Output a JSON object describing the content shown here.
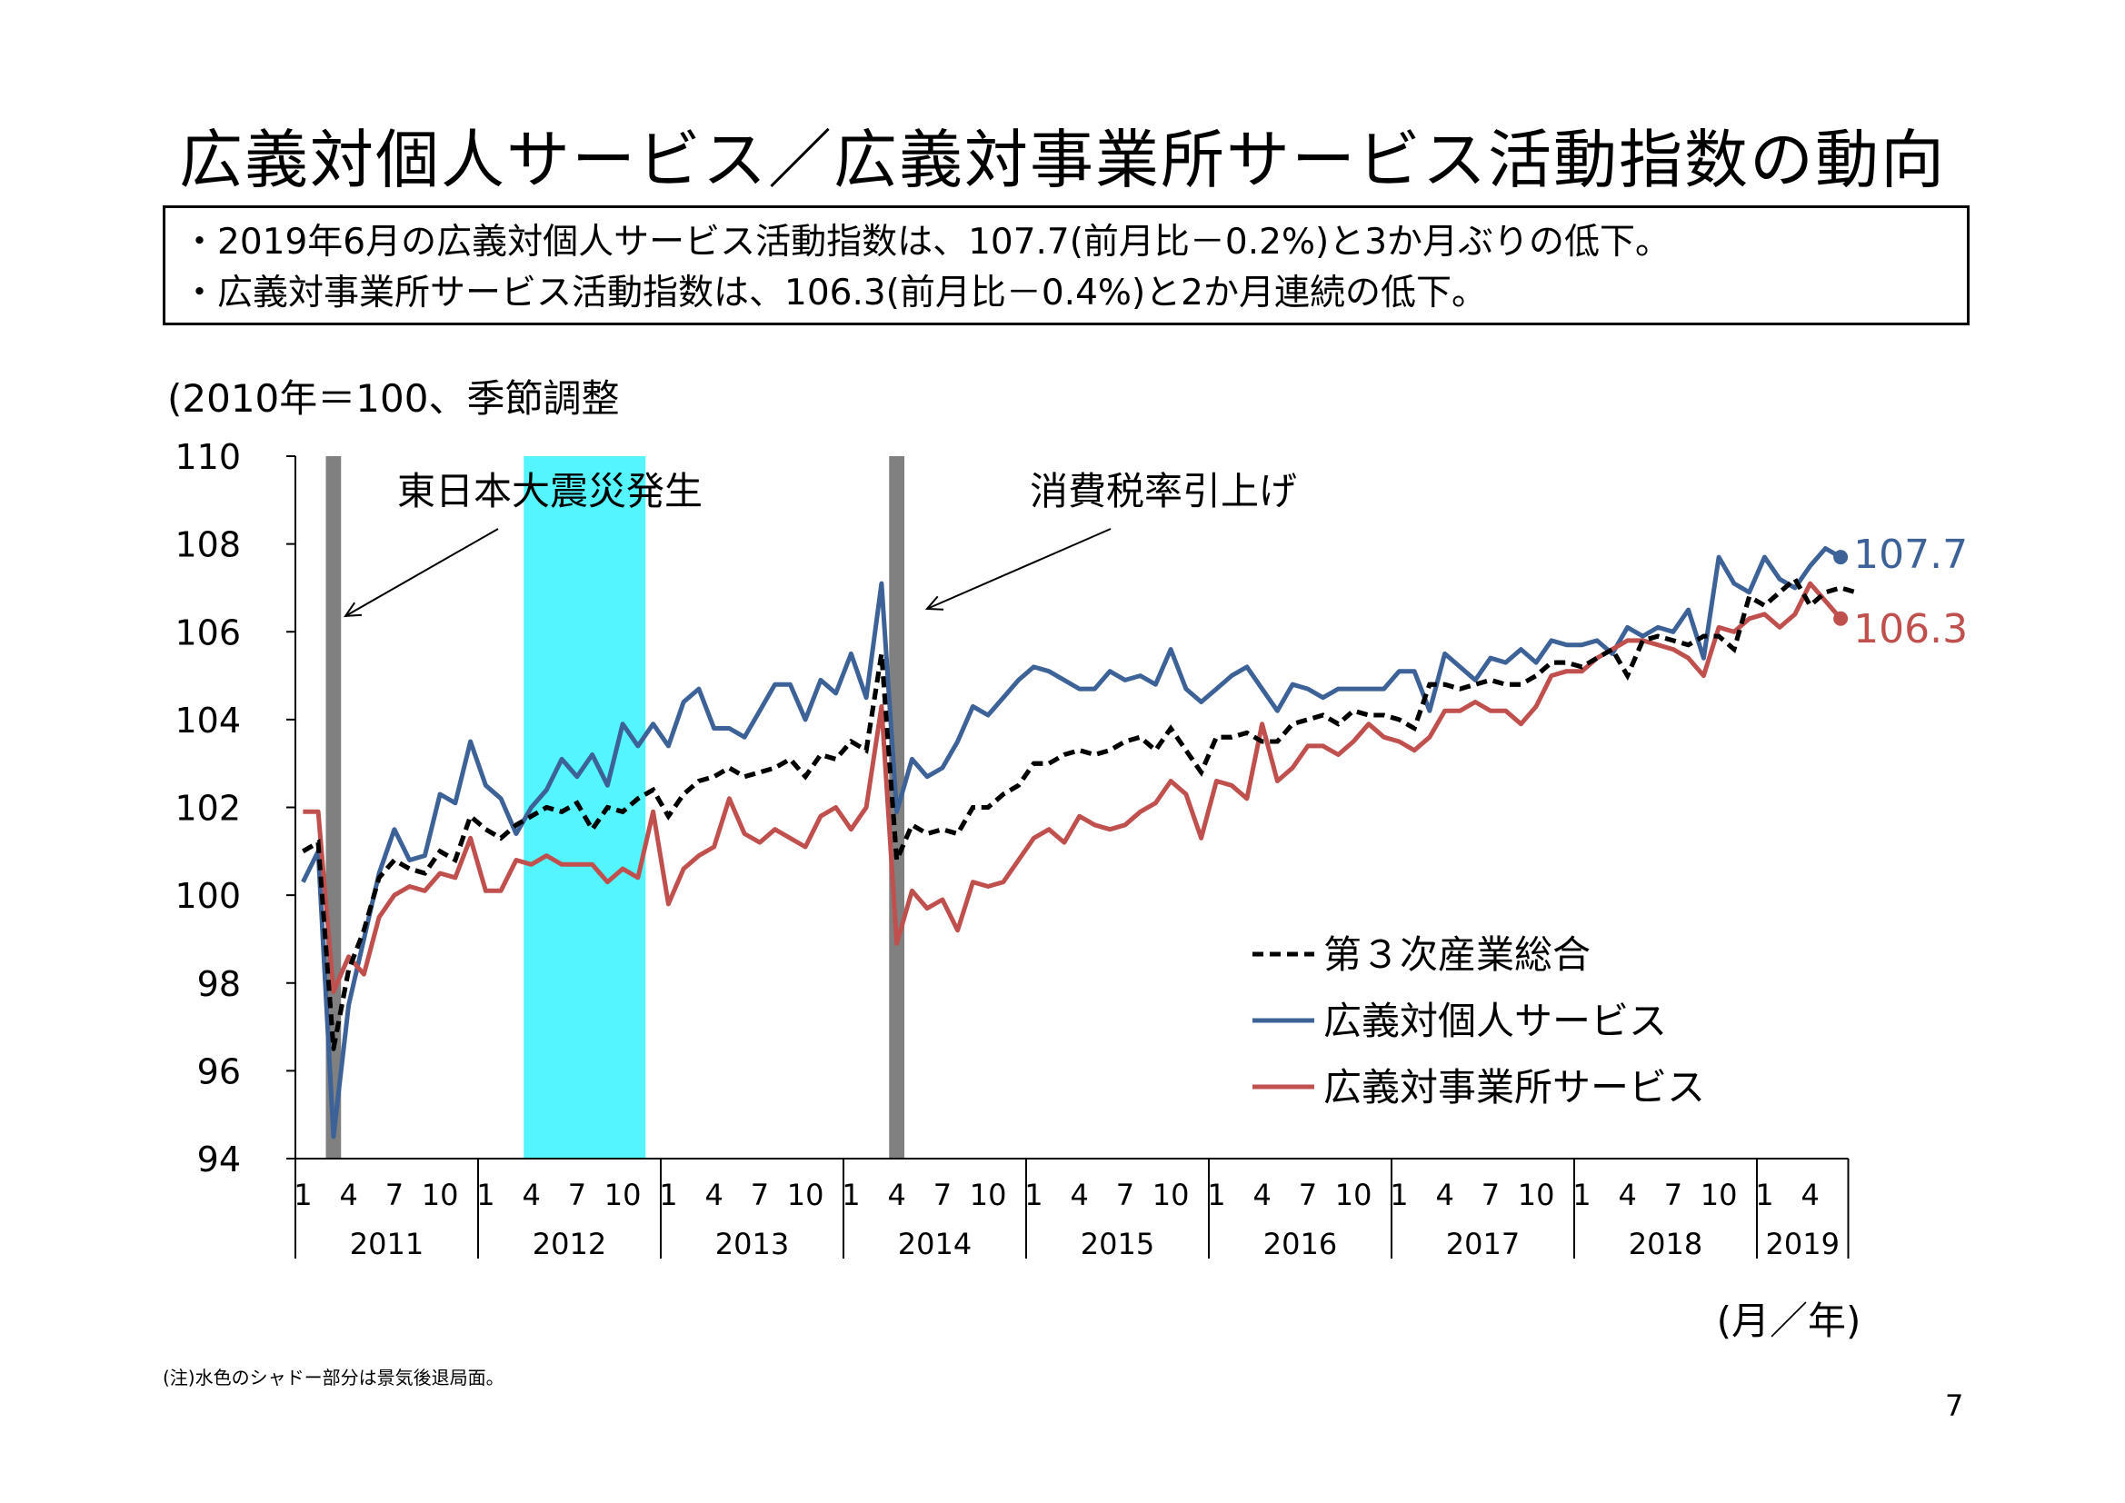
{
  "title": "広義対個人サービス／広義対事業所サービス活動指数の動向",
  "summary": [
    "・2019年6月の広義対個人サービス活動指数は、107.7(前月比－0.2%)と3か月ぶりの低下。",
    "・広義対事業所サービス活動指数は、106.3(前月比－0.4%)と2か月連続の低下。"
  ],
  "note": "(注)水色のシャドー部分は景気後退局面。",
  "page_number": "7",
  "chart_data": {
    "type": "line",
    "unit_label": "(2010年＝100、季節調整",
    "x_axis_label": "(月／年)",
    "ylim": [
      94,
      110
    ],
    "yticks": [
      94,
      96,
      98,
      100,
      102,
      104,
      106,
      108,
      110
    ],
    "start": "2011-01",
    "years": [
      "2011",
      "2012",
      "2013",
      "2014",
      "2015",
      "2016",
      "2017",
      "2018",
      "2019"
    ],
    "month_ticks": [
      "1",
      "4",
      "7",
      "10"
    ],
    "shaded_periods": [
      {
        "from": "2011-03",
        "to": "2011-03",
        "color": "#808080"
      },
      {
        "from": "2012-04",
        "to": "2012-11",
        "color": "#55F5FF"
      },
      {
        "from": "2014-04",
        "to": "2014-04",
        "color": "#808080"
      }
    ],
    "annotations": [
      {
        "text": "東日本大震災発生",
        "target": "2011-03"
      },
      {
        "text": "消費税率引上げ",
        "target": "2014-04"
      }
    ],
    "legend": "bottom-right",
    "series": [
      {
        "name": "第３次産業総合",
        "color": "#000000",
        "style": "dashed",
        "values": [
          101.0,
          101.2,
          96.5,
          98.3,
          99.2,
          100.4,
          100.8,
          100.6,
          100.5,
          101.0,
          100.8,
          101.8,
          101.5,
          101.3,
          101.6,
          101.8,
          102.0,
          101.9,
          102.1,
          101.5,
          102.0,
          101.9,
          102.2,
          102.4,
          101.8,
          102.3,
          102.6,
          102.7,
          102.9,
          102.7,
          102.8,
          102.9,
          103.1,
          102.7,
          103.2,
          103.1,
          103.5,
          103.3,
          105.5,
          100.8,
          101.6,
          101.4,
          101.5,
          101.4,
          102.0,
          102.0,
          102.3,
          102.5,
          103.0,
          103.0,
          103.2,
          103.3,
          103.2,
          103.3,
          103.5,
          103.6,
          103.3,
          103.8,
          103.3,
          102.8,
          103.6,
          103.6,
          103.7,
          103.5,
          103.5,
          103.9,
          104.0,
          104.1,
          103.9,
          104.2,
          104.1,
          104.1,
          104.0,
          103.8,
          104.8,
          104.8,
          104.7,
          104.8,
          104.9,
          104.8,
          104.8,
          105.0,
          105.3,
          105.3,
          105.2,
          105.4,
          105.6,
          105.0,
          105.8,
          105.9,
          105.8,
          105.7,
          105.9,
          105.9,
          105.6,
          106.8,
          106.6,
          106.9,
          107.2,
          106.6,
          106.9,
          107.0,
          106.9
        ]
      },
      {
        "name": "広義対個人サービス",
        "color": "#3C6298",
        "style": "solid",
        "values": [
          100.3,
          101.0,
          94.5,
          97.5,
          99.0,
          100.5,
          101.5,
          100.8,
          100.9,
          102.3,
          102.1,
          103.5,
          102.5,
          102.2,
          101.4,
          102.0,
          102.4,
          103.1,
          102.7,
          103.2,
          102.5,
          103.9,
          103.4,
          103.9,
          103.4,
          104.4,
          104.7,
          103.8,
          103.8,
          103.6,
          104.2,
          104.8,
          104.8,
          104.0,
          104.9,
          104.6,
          105.5,
          104.5,
          107.1,
          101.9,
          103.1,
          102.7,
          102.9,
          103.5,
          104.3,
          104.1,
          104.5,
          104.9,
          105.2,
          105.1,
          104.9,
          104.7,
          104.7,
          105.1,
          104.9,
          105.0,
          104.8,
          105.6,
          104.7,
          104.4,
          104.7,
          105.0,
          105.2,
          104.7,
          104.2,
          104.8,
          104.7,
          104.5,
          104.7,
          104.7,
          104.7,
          104.7,
          105.1,
          105.1,
          104.2,
          105.5,
          105.2,
          104.9,
          105.4,
          105.3,
          105.6,
          105.3,
          105.8,
          105.7,
          105.7,
          105.8,
          105.5,
          106.1,
          105.9,
          106.1,
          106.0,
          106.5,
          105.4,
          107.7,
          107.1,
          106.9,
          107.7,
          107.2,
          107.0,
          107.5,
          107.9,
          107.7
        ]
      },
      {
        "name": "広義対事業所サービス",
        "color": "#C0504D",
        "style": "solid",
        "values": [
          101.9,
          101.9,
          97.8,
          98.6,
          98.2,
          99.5,
          100.0,
          100.2,
          100.1,
          100.5,
          100.4,
          101.3,
          100.1,
          100.1,
          100.8,
          100.7,
          100.9,
          100.7,
          100.7,
          100.7,
          100.3,
          100.6,
          100.4,
          101.9,
          99.8,
          100.6,
          100.9,
          101.1,
          102.2,
          101.4,
          101.2,
          101.5,
          101.3,
          101.1,
          101.8,
          102.0,
          101.5,
          102.0,
          104.3,
          98.9,
          100.1,
          99.7,
          99.9,
          99.2,
          100.3,
          100.2,
          100.3,
          100.8,
          101.3,
          101.5,
          101.2,
          101.8,
          101.6,
          101.5,
          101.6,
          101.9,
          102.1,
          102.6,
          102.3,
          101.3,
          102.6,
          102.5,
          102.2,
          103.9,
          102.6,
          102.9,
          103.4,
          103.4,
          103.2,
          103.5,
          103.9,
          103.6,
          103.5,
          103.3,
          103.6,
          104.2,
          104.2,
          104.4,
          104.2,
          104.2,
          103.9,
          104.3,
          105.0,
          105.1,
          105.1,
          105.4,
          105.6,
          105.8,
          105.8,
          105.7,
          105.6,
          105.4,
          105.0,
          106.1,
          106.0,
          106.3,
          106.4,
          106.1,
          106.4,
          107.1,
          106.7,
          106.3
        ]
      }
    ],
    "end_labels": [
      {
        "series": 1,
        "text": "107.7"
      },
      {
        "series": 2,
        "text": "106.3"
      }
    ]
  }
}
